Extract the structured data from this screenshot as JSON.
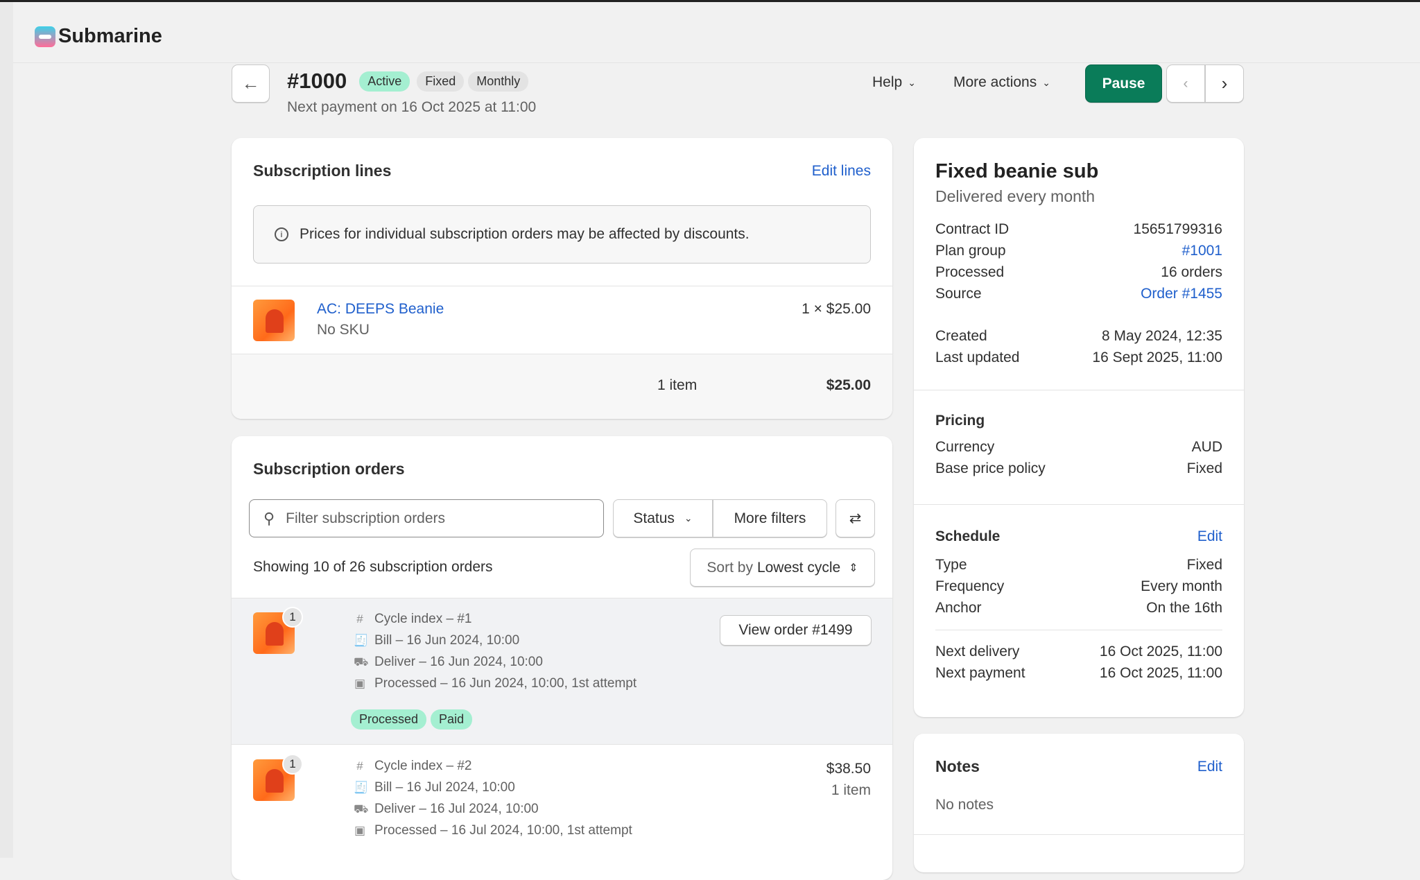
{
  "app": {
    "name": "Submarine"
  },
  "header": {
    "title": "#1000",
    "badges": [
      "Active",
      "Fixed",
      "Monthly"
    ],
    "subtitle": "Next payment on 16 Oct 2025 at 11:00",
    "help": "Help",
    "more_actions": "More actions",
    "pause": "Pause"
  },
  "lines": {
    "title": "Subscription lines",
    "edit": "Edit lines",
    "notice": "Prices for individual subscription orders may be affected by discounts.",
    "product": "AC: DEEPS Beanie",
    "sku": "No SKU",
    "qty_price": "1 × $25.00",
    "count": "1 item",
    "total": "$25.00"
  },
  "orders": {
    "title": "Subscription orders",
    "filter_placeholder": "Filter subscription orders",
    "status": "Status",
    "more_filters": "More filters",
    "showing": "Showing 10 of 26 subscription orders",
    "sort_prefix": "Sort by",
    "sort_value": "Lowest cycle",
    "items": [
      {
        "qty": "1",
        "cycle": "Cycle index – #1",
        "bill": "Bill – 16 Jun 2024, 10:00",
        "deliver": "Deliver – 16 Jun 2024, 10:00",
        "processed": "Processed – 16 Jun 2024, 10:00, 1st attempt",
        "view": "View order #1499",
        "tags": [
          "Processed",
          "Paid"
        ]
      },
      {
        "qty": "1",
        "cycle": "Cycle index – #2",
        "bill": "Bill – 16 Jul 2024, 10:00",
        "deliver": "Deliver – 16 Jul 2024, 10:00",
        "processed": "Processed – 16 Jul 2024, 10:00, 1st attempt",
        "price": "$38.50",
        "count": "1 item"
      }
    ]
  },
  "summary": {
    "title": "Fixed beanie sub",
    "subtitle": "Delivered every month",
    "rows1": [
      {
        "k": "Contract ID",
        "v": "15651799316"
      },
      {
        "k": "Plan group",
        "v": "#1001",
        "link": true
      },
      {
        "k": "Processed",
        "v": "16 orders"
      },
      {
        "k": "Source",
        "v": "Order #1455",
        "link": true
      }
    ],
    "rows2": [
      {
        "k": "Created",
        "v": "8 May 2024, 12:35"
      },
      {
        "k": "Last updated",
        "v": "16 Sept 2025, 11:00"
      }
    ]
  },
  "pricing": {
    "title": "Pricing",
    "rows": [
      {
        "k": "Currency",
        "v": "AUD"
      },
      {
        "k": "Base price policy",
        "v": "Fixed"
      }
    ]
  },
  "schedule": {
    "title": "Schedule",
    "edit": "Edit",
    "rows": [
      {
        "k": "Type",
        "v": "Fixed"
      },
      {
        "k": "Frequency",
        "v": "Every month"
      },
      {
        "k": "Anchor",
        "v": "On the 16th"
      }
    ],
    "rows2": [
      {
        "k": "Next delivery",
        "v": "16 Oct 2025, 11:00"
      },
      {
        "k": "Next payment",
        "v": "16 Oct 2025, 11:00"
      }
    ]
  },
  "notes": {
    "title": "Notes",
    "edit": "Edit",
    "empty": "No notes"
  }
}
